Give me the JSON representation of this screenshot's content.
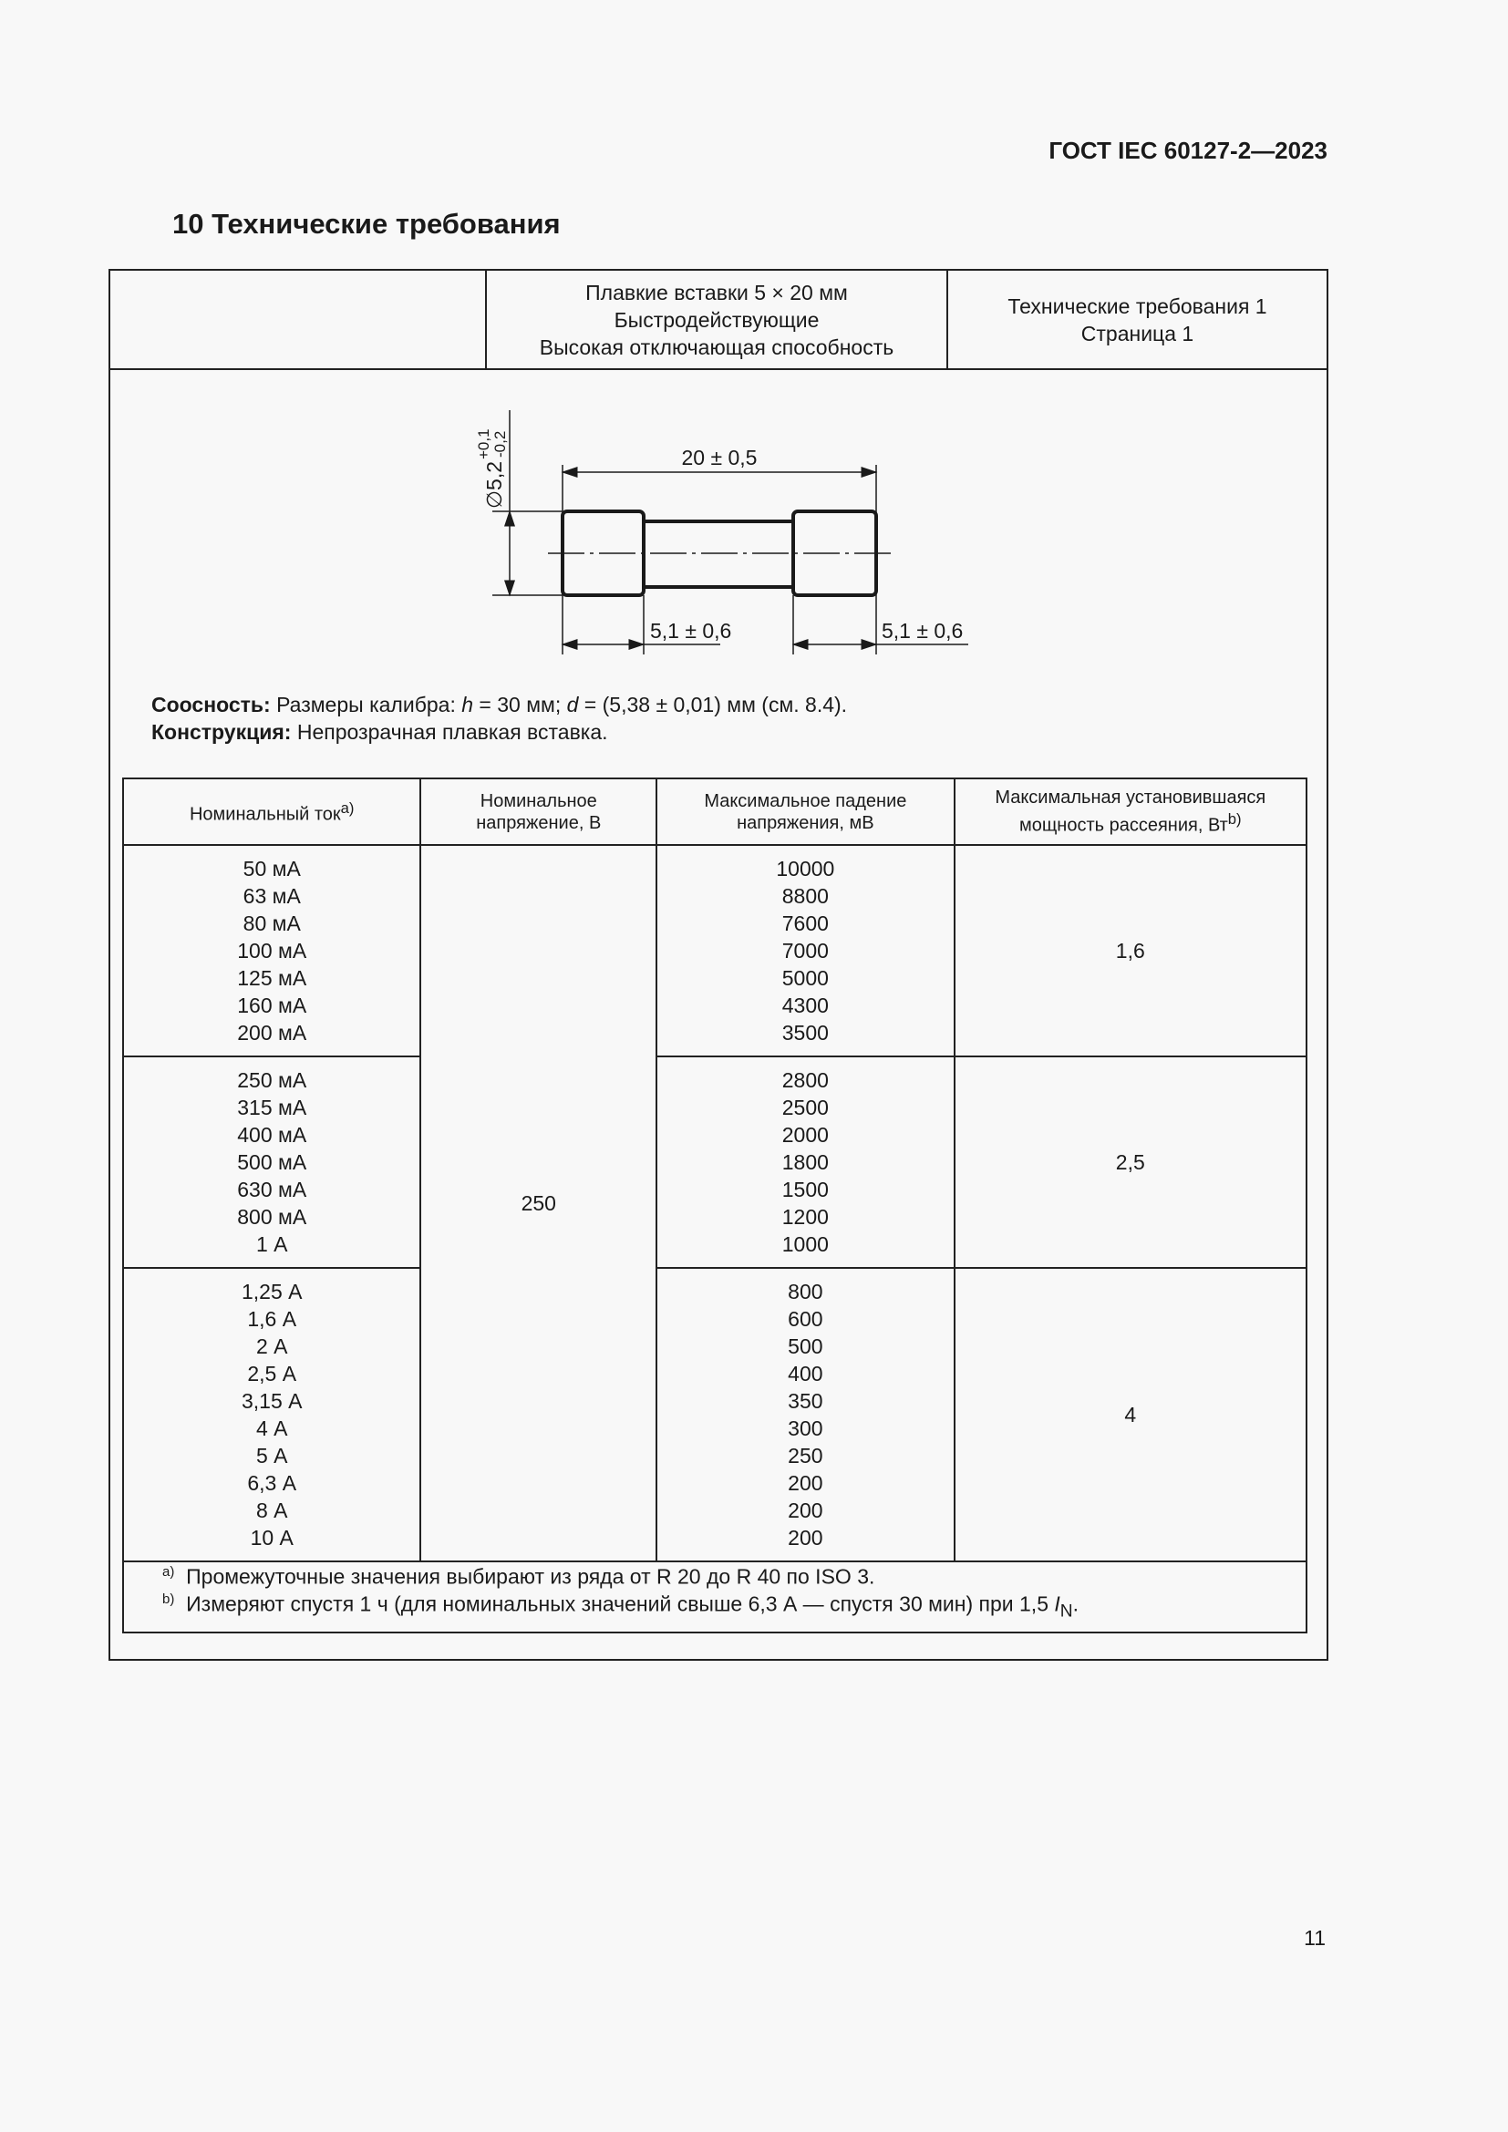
{
  "header": {
    "doc_code": "ГОСТ IEC 60127-2—2023"
  },
  "section": {
    "title": "10  Технические требования"
  },
  "sheet_header": {
    "left": "",
    "middle": [
      "Плавкие вставки 5 × 20 мм",
      "Быстродействующие",
      "Высокая отключающая способность"
    ],
    "right": [
      "Технические требования 1",
      "Страница 1"
    ]
  },
  "drawing": {
    "diameter": "∅5,2",
    "diameter_tol_upper": "+0,1",
    "diameter_tol_lower": "-0,2",
    "length": "20 ± 0,5",
    "cap_left": "5,1 ± 0,6",
    "cap_right": "5,1 ± 0,6"
  },
  "notes": {
    "coaxiality_label": "Соосность:",
    "coaxiality_pre": " Размеры калибра: ",
    "h": "h",
    "coaxiality_mid": " = 30 мм; ",
    "d": "d",
    "coaxiality_post": " = (5,38 ± 0,01) мм (см. 8.4).",
    "construction_label": "Конструкция:",
    "construction_text": " Непрозрачная плавкая вставка."
  },
  "table": {
    "headers": {
      "current": "Номинальный ток",
      "current_sup": "a)",
      "voltage": [
        "Номинальное",
        "напряжение, В"
      ],
      "drop": [
        "Максимальное падение",
        "напряжения, мВ"
      ],
      "power": [
        "Максимальная установившаяся",
        "мощность рассеяния, Вт"
      ],
      "power_sup": "b)"
    },
    "voltage_value": "250",
    "groups": [
      {
        "currents": [
          "50 мА",
          "63 мА",
          "80 мА",
          "100 мА",
          "125 мА",
          "160 мА",
          "200 мА"
        ],
        "drops": [
          "10000",
          "8800",
          "7600",
          "7000",
          "5000",
          "4300",
          "3500"
        ],
        "power": "1,6"
      },
      {
        "currents": [
          "250 мА",
          "315 мА",
          "400 мА",
          "500 мА",
          "630 мА",
          "800 мА",
          "1 А"
        ],
        "drops": [
          "2800",
          "2500",
          "2000",
          "1800",
          "1500",
          "1200",
          "1000"
        ],
        "power": "2,5"
      },
      {
        "currents": [
          "1,25 А",
          "1,6 А",
          "2 А",
          "2,5 А",
          "3,15 А",
          "4 А",
          "5 А",
          "6,3 А",
          "8 А",
          "10 А"
        ],
        "drops": [
          "800",
          "600",
          "500",
          "400",
          "350",
          "300",
          "250",
          "200",
          "200",
          "200"
        ],
        "power": "4"
      }
    ],
    "footnotes": [
      {
        "mark": "a)",
        "text": "Промежуточные значения выбирают из ряда от R 20 до R 40 по ISO 3."
      },
      {
        "mark": "b)",
        "text": "Измеряют спустя 1 ч (для номинальных значений свыше 6,3 А — спустя 30 мин) при 1,5 ",
        "var": "I",
        "sub": "N",
        "end": "."
      }
    ]
  },
  "page_number": "11"
}
